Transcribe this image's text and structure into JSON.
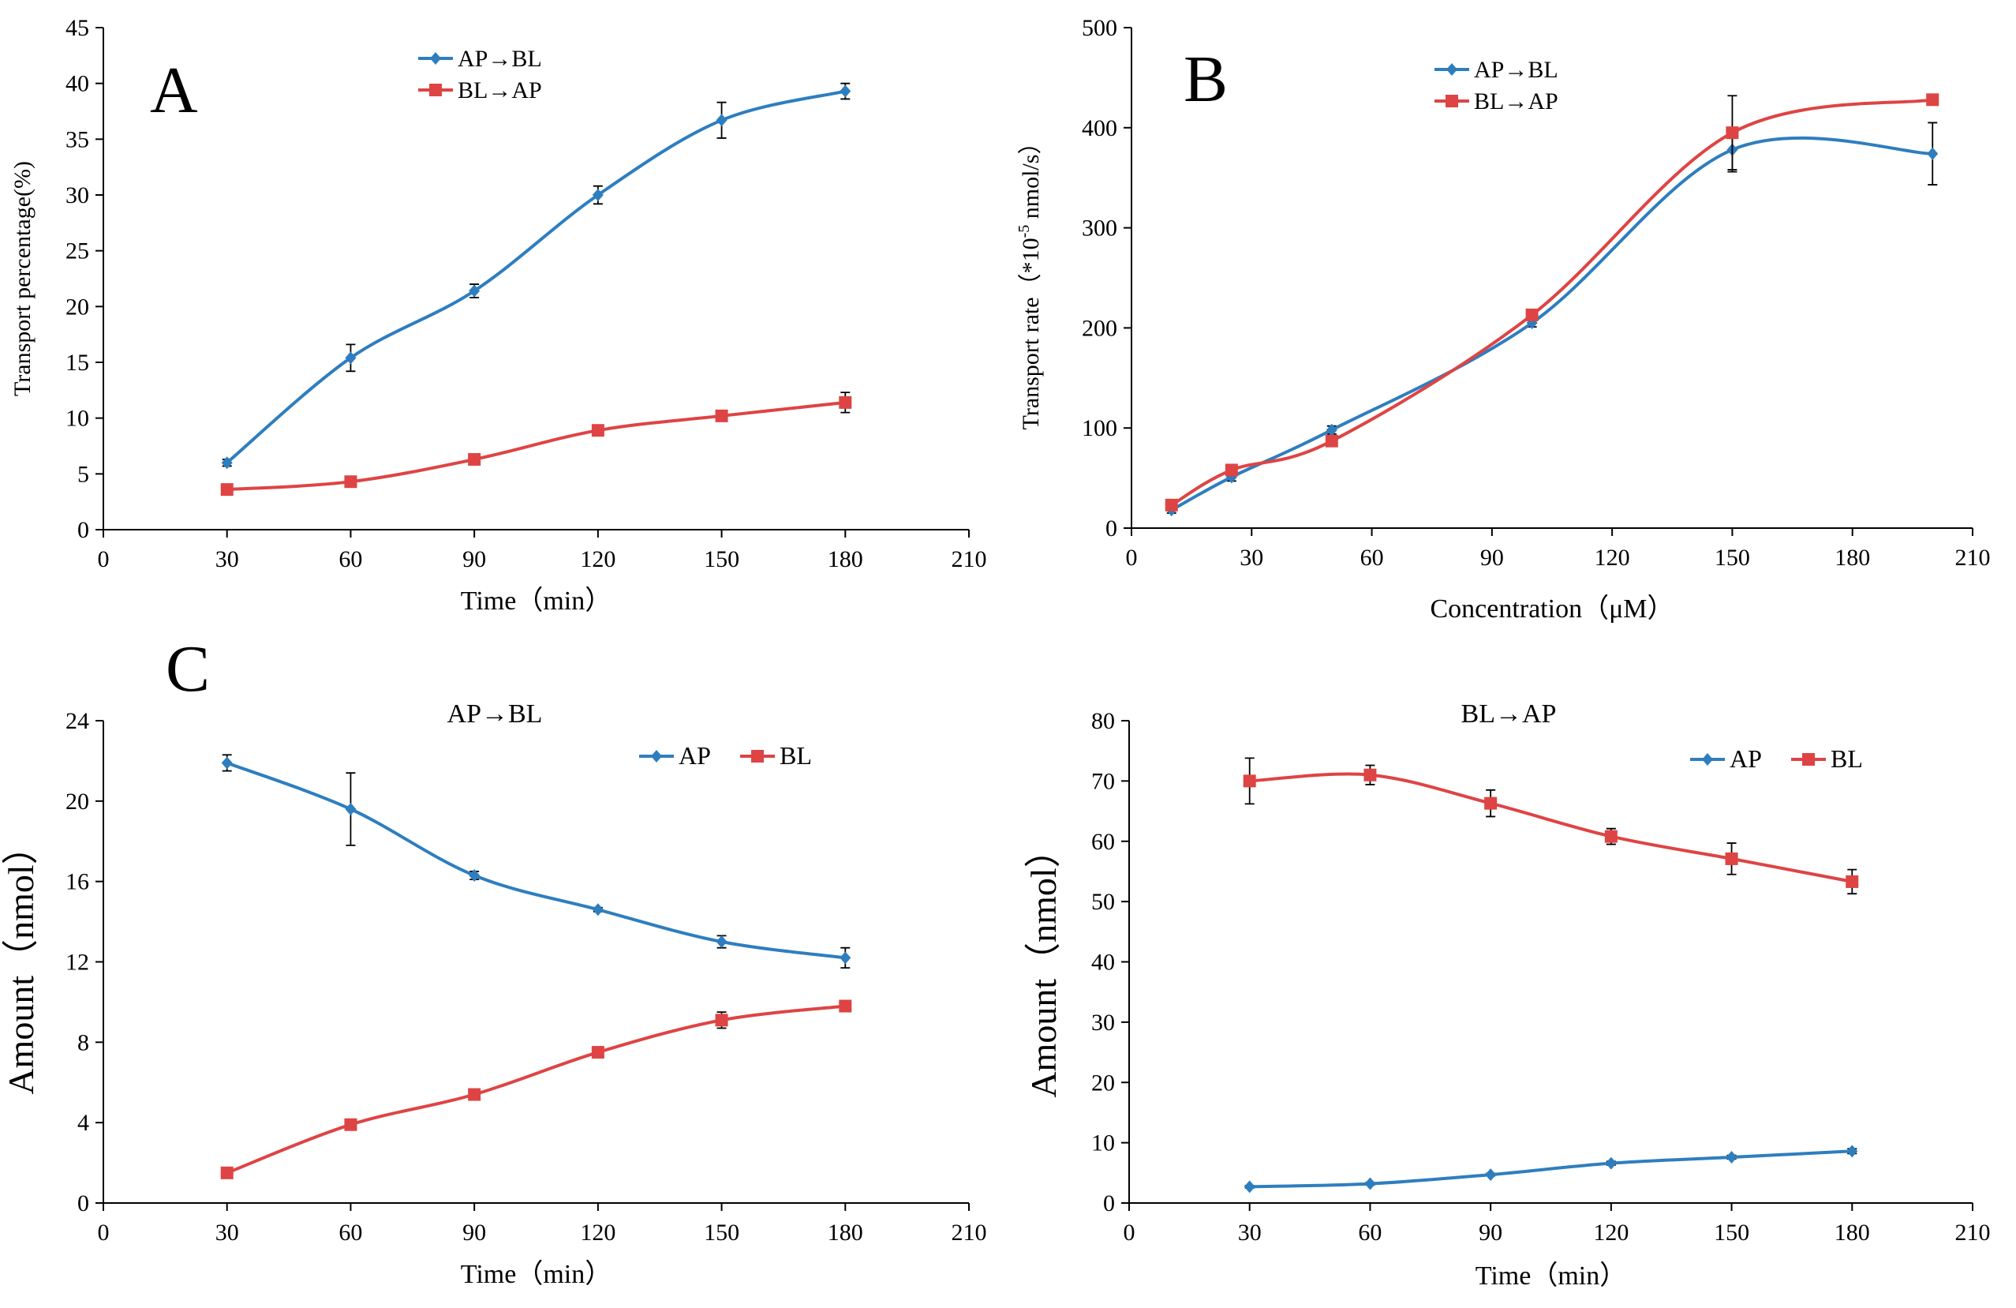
{
  "colors": {
    "blue": "#2e7ebf",
    "red": "#de4444"
  },
  "chart_data": [
    {
      "id": "A",
      "type": "line",
      "panel_label": "A",
      "title": "",
      "xlabel": "Time（min）",
      "ylabel": "Transport percentage(%)",
      "xlim": [
        0,
        210
      ],
      "ylim": [
        0,
        45
      ],
      "xticks": [
        "0",
        "30",
        "60",
        "90",
        "120",
        "150",
        "180",
        "210"
      ],
      "yticks": [
        "0",
        "5",
        "10",
        "15",
        "20",
        "25",
        "30",
        "35",
        "40",
        "45"
      ],
      "legend_position": "top-center",
      "series": [
        {
          "name": "AP→BL",
          "color": "blue",
          "marker": "diamond",
          "x": [
            30,
            60,
            90,
            120,
            150,
            180
          ],
          "y": [
            6.0,
            15.4,
            21.4,
            30.0,
            36.7,
            39.3
          ],
          "err": [
            0.3,
            1.2,
            0.6,
            0.8,
            1.6,
            0.7
          ]
        },
        {
          "name": "BL→AP",
          "color": "red",
          "marker": "square",
          "x": [
            30,
            60,
            90,
            120,
            150,
            180
          ],
          "y": [
            3.6,
            4.3,
            6.3,
            8.9,
            10.2,
            11.4
          ],
          "err": [
            0.2,
            0.2,
            0.2,
            0.3,
            0.3,
            0.9
          ]
        }
      ]
    },
    {
      "id": "B",
      "type": "line",
      "panel_label": "B",
      "title": "",
      "xlabel": "Concentration（μM）",
      "ylabel_main": "Transport rate（*10",
      "ylabel_sup": "-5",
      "ylabel_tail": " nmol/s）",
      "xlim": [
        0,
        210
      ],
      "ylim": [
        0,
        500
      ],
      "xticks": [
        "0",
        "30",
        "60",
        "90",
        "120",
        "150",
        "180",
        "210"
      ],
      "yticks": [
        "0",
        "100",
        "200",
        "300",
        "400",
        "500"
      ],
      "legend_position": "top-left",
      "series": [
        {
          "name": "AP→BL",
          "color": "blue",
          "marker": "diamond",
          "x": [
            10,
            25,
            50,
            100,
            150,
            200
          ],
          "y": [
            18,
            51,
            98,
            205,
            378,
            374
          ],
          "err": [
            3,
            4,
            4,
            4,
            22,
            31
          ]
        },
        {
          "name": "BL→AP",
          "color": "red",
          "marker": "square",
          "x": [
            10,
            25,
            50,
            100,
            150,
            200
          ],
          "y": [
            23,
            58,
            87,
            213,
            395,
            428
          ],
          "err": [
            3,
            3,
            4,
            5,
            37,
            4
          ]
        }
      ]
    },
    {
      "id": "C1",
      "type": "line",
      "panel_label": "C",
      "title": "AP→BL",
      "xlabel": "Time（min）",
      "ylabel": "Amount（nmol）",
      "xlim": [
        0,
        210
      ],
      "ylim": [
        0,
        24
      ],
      "xticks": [
        "0",
        "30",
        "60",
        "90",
        "120",
        "150",
        "180",
        "210"
      ],
      "yticks": [
        "0",
        "4",
        "8",
        "12",
        "16",
        "20",
        "24"
      ],
      "legend_position": "top-right",
      "series": [
        {
          "name": "AP",
          "color": "blue",
          "marker": "diamond",
          "x": [
            30,
            60,
            90,
            120,
            150,
            180
          ],
          "y": [
            21.9,
            19.6,
            16.3,
            14.6,
            13.0,
            12.2
          ],
          "err": [
            0.4,
            1.8,
            0.2,
            0.1,
            0.3,
            0.5
          ]
        },
        {
          "name": "BL",
          "color": "red",
          "marker": "square",
          "x": [
            30,
            60,
            90,
            120,
            150,
            180
          ],
          "y": [
            1.5,
            3.9,
            5.4,
            7.5,
            9.1,
            9.8
          ],
          "err": [
            0.1,
            0.2,
            0.2,
            0.1,
            0.4,
            0.2
          ]
        }
      ]
    },
    {
      "id": "C2",
      "type": "line",
      "panel_label": "",
      "title": "BL→AP",
      "xlabel": "Time（min）",
      "ylabel": "Amount（nmol）",
      "xlim": [
        0,
        210
      ],
      "ylim": [
        0,
        80
      ],
      "xticks": [
        "0",
        "30",
        "60",
        "90",
        "120",
        "150",
        "180",
        "210"
      ],
      "yticks": [
        "0",
        "10",
        "20",
        "30",
        "40",
        "50",
        "60",
        "70",
        "80"
      ],
      "legend_position": "top-right",
      "series": [
        {
          "name": "AP",
          "color": "blue",
          "marker": "diamond",
          "x": [
            30,
            60,
            90,
            120,
            150,
            180
          ],
          "y": [
            2.7,
            3.2,
            4.7,
            6.6,
            7.6,
            8.6
          ],
          "err": [
            0.2,
            0.2,
            0.2,
            0.3,
            0.3,
            0.4
          ]
        },
        {
          "name": "BL",
          "color": "red",
          "marker": "square",
          "x": [
            30,
            60,
            90,
            120,
            150,
            180
          ],
          "y": [
            70.0,
            71.0,
            66.3,
            60.8,
            57.1,
            53.3
          ],
          "err": [
            3.8,
            1.6,
            2.2,
            1.3,
            2.6,
            2.0
          ]
        }
      ]
    }
  ]
}
